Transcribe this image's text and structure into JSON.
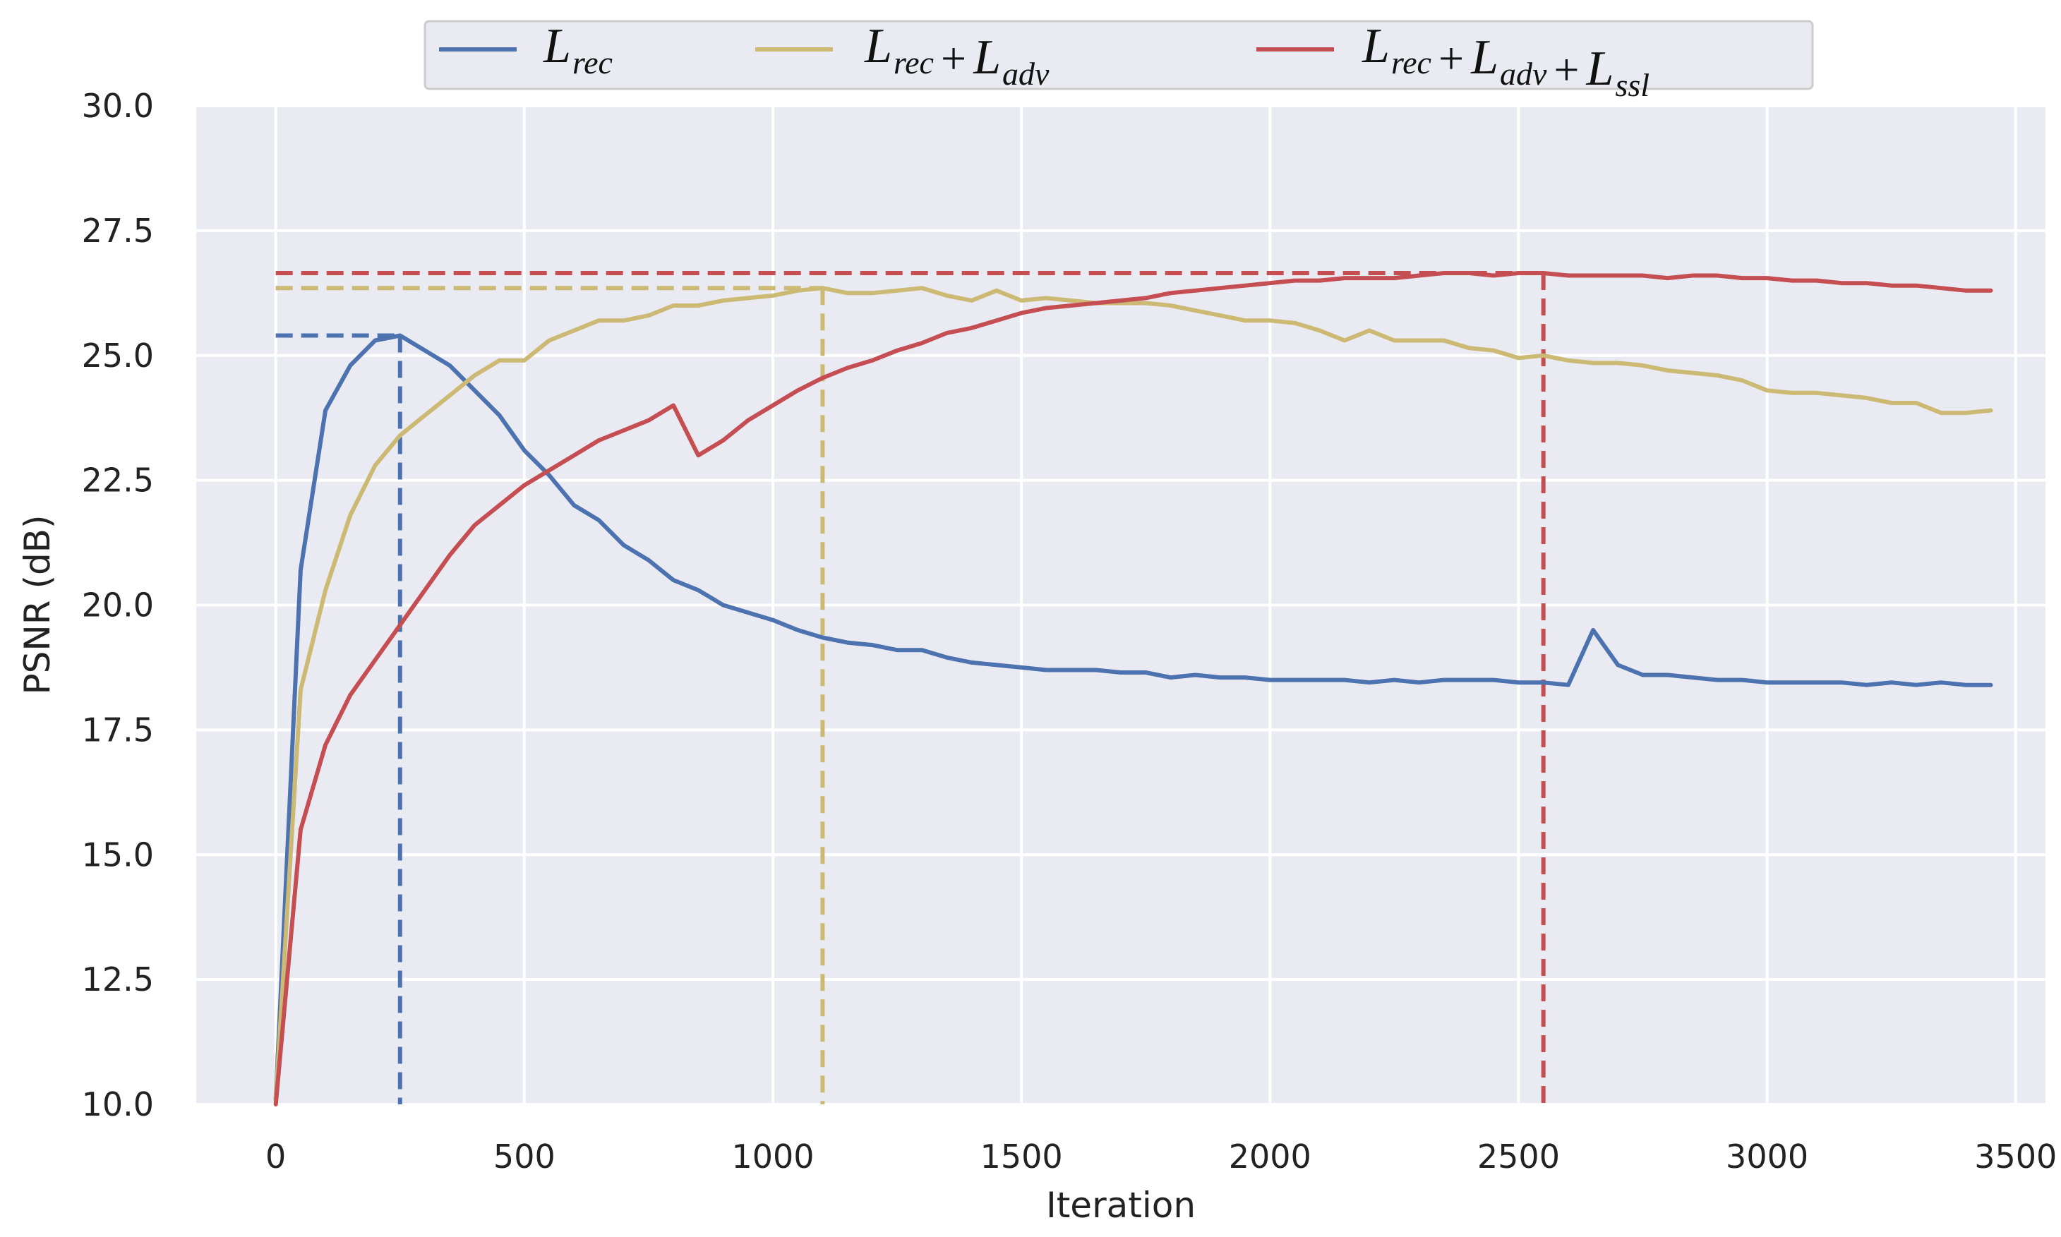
{
  "chart_data": {
    "type": "line",
    "xlabel": "Iteration",
    "ylabel": "PSNR (dB)",
    "xlim": [
      -160,
      3560
    ],
    "ylim": [
      10.0,
      30.0
    ],
    "xticks": [
      0,
      500,
      1000,
      1500,
      2000,
      2500,
      3000,
      3500
    ],
    "xtick_labels": [
      "0",
      "500",
      "1000",
      "1500",
      "2000",
      "2500",
      "3000",
      "3500"
    ],
    "yticks": [
      10.0,
      12.5,
      15.0,
      17.5,
      20.0,
      22.5,
      25.0,
      27.5,
      30.0
    ],
    "ytick_labels": [
      "10.0",
      "12.5",
      "15.0",
      "17.5",
      "20.0",
      "22.5",
      "25.0",
      "27.5",
      "30.0"
    ],
    "grid": true,
    "legend_position": "top-center",
    "background": "#eaeaf2",
    "series": [
      {
        "base": "L",
        "sub": "rec",
        "terms": [
          {
            "base": "L",
            "sub": "rec"
          }
        ],
        "color": "#4c72b0",
        "x": [
          0,
          50,
          100,
          150,
          200,
          250,
          300,
          350,
          400,
          450,
          500,
          550,
          600,
          650,
          700,
          750,
          800,
          850,
          900,
          950,
          1000,
          1050,
          1100,
          1150,
          1200,
          1250,
          1300,
          1350,
          1400,
          1450,
          1500,
          1550,
          1600,
          1650,
          1700,
          1750,
          1800,
          1850,
          1900,
          1950,
          2000,
          2050,
          2100,
          2150,
          2200,
          2250,
          2300,
          2350,
          2400,
          2450,
          2500,
          2550,
          2600,
          2650,
          2700,
          2750,
          2800,
          2850,
          2900,
          2950,
          3000,
          3050,
          3100,
          3150,
          3200,
          3250,
          3300,
          3350,
          3400,
          3450
        ],
        "values": [
          10.1,
          20.7,
          23.9,
          24.8,
          25.3,
          25.4,
          25.1,
          24.8,
          24.3,
          23.8,
          23.1,
          22.6,
          22.0,
          21.7,
          21.2,
          20.9,
          20.5,
          20.3,
          20.0,
          19.85,
          19.7,
          19.5,
          19.35,
          19.25,
          19.2,
          19.1,
          19.1,
          18.95,
          18.85,
          18.8,
          18.75,
          18.7,
          18.7,
          18.7,
          18.65,
          18.65,
          18.55,
          18.6,
          18.55,
          18.55,
          18.5,
          18.5,
          18.5,
          18.5,
          18.45,
          18.5,
          18.45,
          18.5,
          18.5,
          18.5,
          18.45,
          18.45,
          18.4,
          19.5,
          18.8,
          18.6,
          18.6,
          18.55,
          18.5,
          18.5,
          18.45,
          18.45,
          18.45,
          18.45,
          18.4,
          18.45,
          18.4,
          18.45,
          18.4,
          18.4
        ],
        "peak": {
          "x": 250,
          "y": 25.4
        }
      },
      {
        "base": "L",
        "sub": "rec",
        "terms": [
          {
            "base": "L",
            "sub": "rec"
          },
          {
            "base": "L",
            "sub": "adv"
          }
        ],
        "color": "#ccb974",
        "x": [
          0,
          50,
          100,
          150,
          200,
          250,
          300,
          350,
          400,
          450,
          500,
          550,
          600,
          650,
          700,
          750,
          800,
          850,
          900,
          950,
          1000,
          1050,
          1100,
          1150,
          1200,
          1250,
          1300,
          1350,
          1400,
          1450,
          1500,
          1550,
          1600,
          1650,
          1700,
          1750,
          1800,
          1850,
          1900,
          1950,
          2000,
          2050,
          2100,
          2150,
          2200,
          2250,
          2300,
          2350,
          2400,
          2450,
          2500,
          2550,
          2600,
          2650,
          2700,
          2750,
          2800,
          2850,
          2900,
          2950,
          3000,
          3050,
          3100,
          3150,
          3200,
          3250,
          3300,
          3350,
          3400,
          3450
        ],
        "values": [
          10.1,
          18.3,
          20.3,
          21.8,
          22.8,
          23.4,
          23.8,
          24.2,
          24.6,
          24.9,
          24.9,
          25.3,
          25.5,
          25.7,
          25.7,
          25.8,
          26.0,
          26.0,
          26.1,
          26.15,
          26.2,
          26.3,
          26.35,
          26.25,
          26.25,
          26.3,
          26.35,
          26.2,
          26.1,
          26.3,
          26.1,
          26.15,
          26.1,
          26.05,
          26.05,
          26.05,
          26.0,
          25.9,
          25.8,
          25.7,
          25.7,
          25.65,
          25.5,
          25.3,
          25.5,
          25.3,
          25.3,
          25.3,
          25.15,
          25.1,
          24.95,
          25.0,
          24.9,
          24.85,
          24.85,
          24.8,
          24.7,
          24.65,
          24.6,
          24.5,
          24.3,
          24.25,
          24.25,
          24.2,
          24.15,
          24.05,
          24.05,
          23.85,
          23.85,
          23.9
        ],
        "peak": {
          "x": 1100,
          "y": 26.35
        }
      },
      {
        "base": "L",
        "sub": "rec",
        "terms": [
          {
            "base": "L",
            "sub": "rec"
          },
          {
            "base": "L",
            "sub": "adv"
          },
          {
            "base": "L",
            "sub": "ssl"
          }
        ],
        "color": "#c44e52",
        "x": [
          0,
          50,
          100,
          150,
          200,
          250,
          300,
          350,
          400,
          450,
          500,
          550,
          600,
          650,
          700,
          750,
          800,
          850,
          900,
          950,
          1000,
          1050,
          1100,
          1150,
          1200,
          1250,
          1300,
          1350,
          1400,
          1450,
          1500,
          1550,
          1600,
          1650,
          1700,
          1750,
          1800,
          1850,
          1900,
          1950,
          2000,
          2050,
          2100,
          2150,
          2200,
          2250,
          2300,
          2350,
          2400,
          2450,
          2500,
          2550,
          2600,
          2650,
          2700,
          2750,
          2800,
          2850,
          2900,
          2950,
          3000,
          3050,
          3100,
          3150,
          3200,
          3250,
          3300,
          3350,
          3400,
          3450
        ],
        "values": [
          10.0,
          15.5,
          17.2,
          18.2,
          18.9,
          19.6,
          20.3,
          21.0,
          21.6,
          22.0,
          22.4,
          22.7,
          23.0,
          23.3,
          23.5,
          23.7,
          24.0,
          23.0,
          23.3,
          23.7,
          24.0,
          24.3,
          24.55,
          24.75,
          24.9,
          25.1,
          25.25,
          25.45,
          25.55,
          25.7,
          25.85,
          25.95,
          26.0,
          26.05,
          26.1,
          26.15,
          26.25,
          26.3,
          26.35,
          26.4,
          26.45,
          26.5,
          26.5,
          26.55,
          26.55,
          26.55,
          26.6,
          26.65,
          26.65,
          26.6,
          26.65,
          26.65,
          26.6,
          26.6,
          26.6,
          26.6,
          26.55,
          26.6,
          26.6,
          26.55,
          26.55,
          26.5,
          26.5,
          26.45,
          26.45,
          26.4,
          26.4,
          26.35,
          26.3,
          26.3
        ],
        "peak": {
          "x": 2550,
          "y": 26.65
        }
      }
    ]
  }
}
